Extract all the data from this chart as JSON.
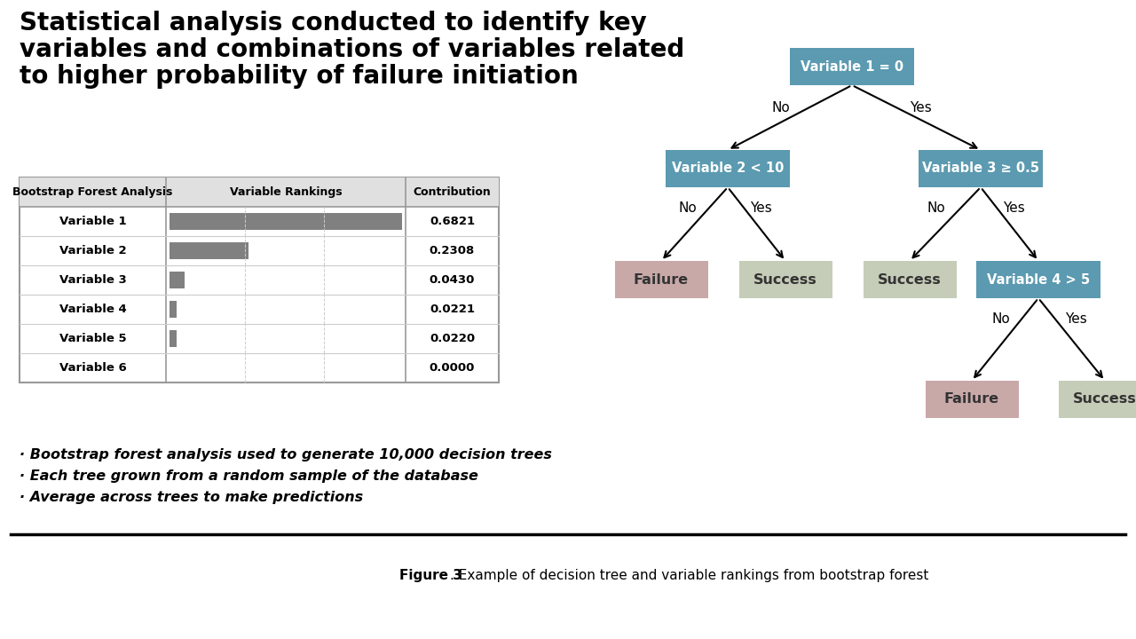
{
  "title_line1": "Statistical analysis conducted to identify key",
  "title_line2": "variables and combinations of variables related",
  "title_line3": "to higher probability of failure initiation",
  "table_headers": [
    "Bootstrap Forest Analysis",
    "Variable Rankings",
    "Contribution"
  ],
  "table_variables": [
    "Variable 1",
    "Variable 2",
    "Variable 3",
    "Variable 4",
    "Variable 5",
    "Variable 6"
  ],
  "table_contributions": [
    "0.6821",
    "0.2308",
    "0.0430",
    "0.0221",
    "0.0220",
    "0.0000"
  ],
  "table_bar_values": [
    0.6821,
    0.2308,
    0.043,
    0.0221,
    0.022,
    0.0
  ],
  "bar_color": "#808080",
  "bullet_points": [
    "· Bootstrap forest analysis used to generate 10,000 decision trees",
    "· Each tree grown from a random sample of the database",
    "· Average across trees to make predictions"
  ],
  "figure_caption_bold": "Figure 3",
  "figure_caption_rest": ". Example of decision tree and variable rankings from bootstrap forest",
  "tree_node_color": "#5b9ab0",
  "tree_failure_color": "#c9a8a8",
  "tree_success_color": "#c5cdb8",
  "tree_text_color": "#ffffff",
  "tree_leaf_text_color": "#333333",
  "bg_color": "#ffffff"
}
